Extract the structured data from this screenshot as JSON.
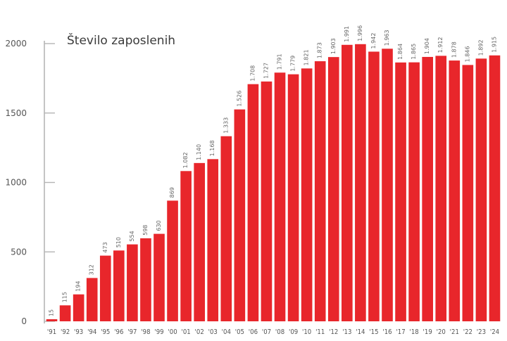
{
  "chart_data": {
    "type": "bar",
    "title": "Število zaposlenih",
    "xlabel": "",
    "ylabel": "",
    "ylim": [
      0,
      2000
    ],
    "yticks": [
      "0",
      "500",
      "1000",
      "1500",
      "2000"
    ],
    "categories": [
      "'91",
      "'92",
      "'93",
      "'94",
      "'95",
      "'96",
      "'97",
      "'98",
      "'99",
      "'00",
      "'01",
      "'02",
      "'03",
      "'04",
      "'05",
      "'06",
      "'07",
      "'08",
      "'09",
      "'10",
      "'11",
      "'12",
      "'13",
      "'14",
      "'15",
      "'16",
      "'17",
      "'18",
      "'19",
      "'20",
      "'21",
      "'22",
      "'23",
      "'24"
    ],
    "values": [
      15,
      115,
      194,
      312,
      473,
      510,
      554,
      598,
      630,
      869,
      1082,
      1140,
      1168,
      1333,
      1526,
      1708,
      1727,
      1791,
      1779,
      1821,
      1873,
      1903,
      1991,
      1996,
      1942,
      1963,
      1864,
      1865,
      1904,
      1912,
      1878,
      1846,
      1892,
      1915
    ],
    "data_labels": [
      "15",
      "115",
      "194",
      "312",
      "473",
      "510",
      "554",
      "598",
      "630",
      "869",
      "1.082",
      "1.140",
      "1.168",
      "1.333",
      "1.526",
      "1.708",
      "1.727",
      "1.791",
      "1.779",
      "1.821",
      "1.873",
      "1.903",
      "1.991",
      "1.996",
      "1.942",
      "1.963",
      "1.864",
      "1.865",
      "1.904",
      "1.912",
      "1.878",
      "1.846",
      "1.892",
      "1.915"
    ],
    "bar_color": "#e8262b",
    "grid": false
  }
}
